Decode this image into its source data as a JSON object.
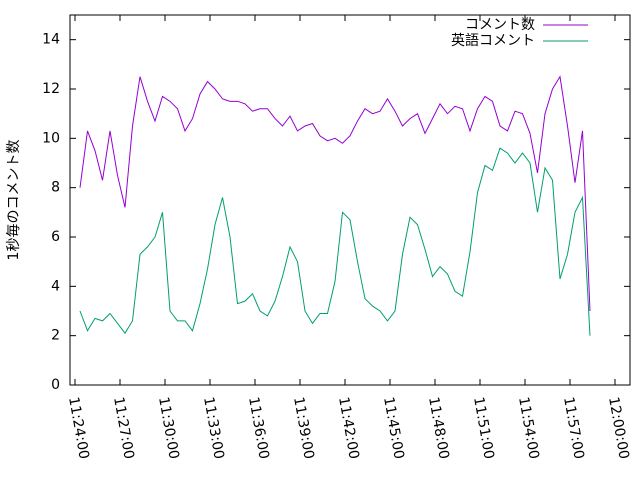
{
  "chart_data": {
    "type": "line",
    "ylabel": "1秒毎のコメント数",
    "x": [
      "11:24:20",
      "11:24:50",
      "11:25:20",
      "11:25:50",
      "11:26:20",
      "11:26:50",
      "11:27:20",
      "11:27:50",
      "11:28:20",
      "11:28:50",
      "11:29:20",
      "11:29:50",
      "11:30:20",
      "11:30:50",
      "11:31:20",
      "11:31:50",
      "11:32:20",
      "11:32:50",
      "11:33:20",
      "11:33:50",
      "11:34:20",
      "11:34:50",
      "11:35:20",
      "11:35:50",
      "11:36:20",
      "11:36:50",
      "11:37:20",
      "11:37:50",
      "11:38:20",
      "11:38:50",
      "11:39:20",
      "11:39:50",
      "11:40:20",
      "11:40:50",
      "11:41:20",
      "11:41:50",
      "11:42:20",
      "11:42:50",
      "11:43:20",
      "11:43:50",
      "11:44:20",
      "11:44:50",
      "11:45:20",
      "11:45:50",
      "11:46:20",
      "11:46:50",
      "11:47:20",
      "11:47:50",
      "11:48:20",
      "11:48:50",
      "11:49:20",
      "11:49:50",
      "11:50:20",
      "11:50:50",
      "11:51:20",
      "11:51:50",
      "11:52:20",
      "11:52:50",
      "11:53:20",
      "11:53:50",
      "11:54:20",
      "11:54:50",
      "11:55:20",
      "11:55:50",
      "11:56:20",
      "11:56:50",
      "11:57:20",
      "11:57:50",
      "11:58:20"
    ],
    "series": [
      {
        "name": "コメント数",
        "color": "#9400d3",
        "values": [
          8.0,
          10.3,
          9.5,
          8.3,
          10.3,
          8.5,
          7.2,
          10.5,
          12.5,
          11.5,
          10.7,
          11.7,
          11.5,
          11.2,
          10.3,
          10.8,
          11.8,
          12.3,
          12.0,
          11.6,
          11.5,
          11.5,
          11.4,
          11.1,
          11.2,
          11.2,
          10.8,
          10.5,
          10.9,
          10.3,
          10.5,
          10.6,
          10.1,
          9.9,
          10.0,
          9.8,
          10.1,
          10.7,
          11.2,
          11.0,
          11.1,
          11.6,
          11.1,
          10.5,
          10.8,
          11.0,
          10.2,
          10.8,
          11.4,
          11.0,
          11.3,
          11.2,
          10.3,
          11.2,
          11.7,
          11.5,
          10.5,
          10.3,
          11.1,
          11.0,
          10.2,
          8.6,
          11.0,
          12.0,
          12.5,
          10.5,
          8.2,
          10.3,
          3.0
        ]
      },
      {
        "name": "英語コメント",
        "color": "#009e73",
        "values": [
          3.0,
          2.2,
          2.7,
          2.6,
          2.9,
          2.5,
          2.1,
          2.6,
          5.3,
          5.6,
          6.0,
          7.0,
          3.0,
          2.6,
          2.6,
          2.2,
          3.3,
          4.7,
          6.5,
          7.6,
          6.0,
          3.3,
          3.4,
          3.7,
          3.0,
          2.8,
          3.4,
          4.4,
          5.6,
          5.0,
          3.0,
          2.5,
          2.9,
          2.9,
          4.2,
          7.0,
          6.7,
          5.0,
          3.5,
          3.2,
          3.0,
          2.6,
          3.0,
          5.3,
          6.8,
          6.5,
          5.5,
          4.4,
          4.8,
          4.5,
          3.8,
          3.6,
          5.4,
          7.8,
          8.9,
          8.7,
          9.6,
          9.4,
          9.0,
          9.4,
          9.0,
          7.0,
          8.8,
          8.3,
          4.3,
          5.3,
          7.0,
          7.6,
          2.0
        ]
      }
    ],
    "xlim": [
      "11:23:40",
      "12:01:00"
    ],
    "xticks": [
      "11:24:00",
      "11:27:00",
      "11:30:00",
      "11:33:00",
      "11:36:00",
      "11:39:00",
      "11:42:00",
      "11:45:00",
      "11:48:00",
      "11:51:00",
      "11:54:00",
      "11:57:00",
      "12:00:00"
    ],
    "ylim": [
      0,
      15
    ],
    "yticks": [
      0,
      2,
      4,
      6,
      8,
      10,
      12,
      14
    ],
    "legend": "top-right"
  }
}
